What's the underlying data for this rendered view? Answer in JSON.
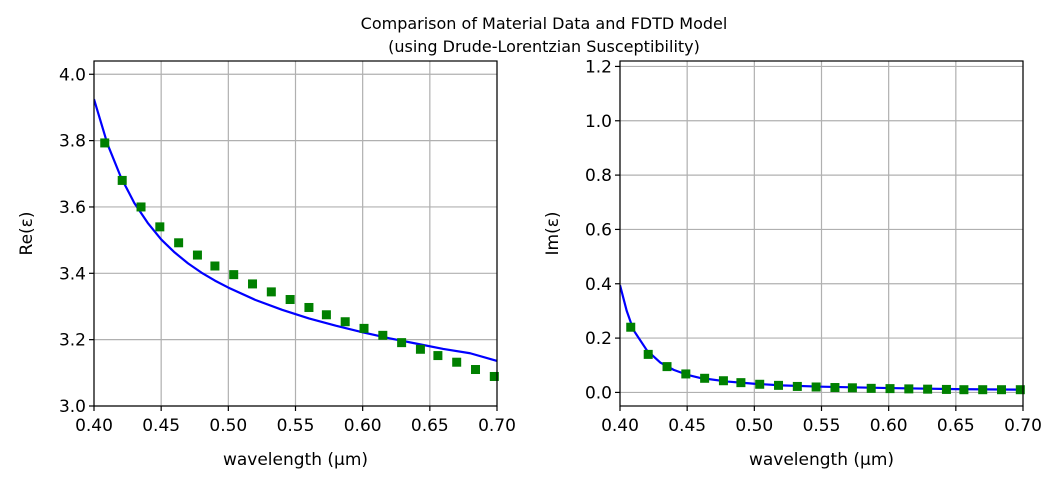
{
  "figure": {
    "title_line1": "Comparison of Material Data and FDTD Model",
    "title_line2": "(using Drude-Lorentzian Susceptibility)"
  },
  "colors": {
    "model_line": "#0000ff",
    "data_marker": "#008000",
    "grid": "#b0b0b0"
  },
  "chart_data": [
    {
      "type": "scatter+line",
      "title": "",
      "xlabel": "wavelength (μm)",
      "ylabel": "Re(ε)",
      "xlim": [
        0.4,
        0.7
      ],
      "ylim": [
        3.0,
        4.04
      ],
      "xticks": [
        0.4,
        0.45,
        0.5,
        0.55,
        0.6,
        0.65,
        0.7
      ],
      "xtick_labels": [
        "0.40",
        "0.45",
        "0.50",
        "0.55",
        "0.60",
        "0.65",
        "0.70"
      ],
      "yticks": [
        3.0,
        3.2,
        3.4,
        3.6,
        3.8,
        4.0
      ],
      "ytick_labels": [
        "3.0",
        "3.2",
        "3.4",
        "3.6",
        "3.8",
        "4.0"
      ],
      "grid": true,
      "series": [
        {
          "name": "Material Data",
          "style": "square-markers",
          "x": [
            0.408,
            0.421,
            0.435,
            0.449,
            0.463,
            0.477,
            0.49,
            0.504,
            0.518,
            0.532,
            0.546,
            0.56,
            0.573,
            0.587,
            0.601,
            0.615,
            0.629,
            0.643,
            0.656,
            0.67,
            0.684,
            0.698
          ],
          "values": [
            3.793,
            3.68,
            3.6,
            3.54,
            3.492,
            3.455,
            3.422,
            3.396,
            3.368,
            3.344,
            3.321,
            3.297,
            3.275,
            3.254,
            3.234,
            3.213,
            3.191,
            3.171,
            3.152,
            3.132,
            3.11,
            3.089
          ]
        },
        {
          "name": "FDTD Model",
          "style": "line",
          "x": [
            0.4,
            0.41,
            0.42,
            0.43,
            0.44,
            0.45,
            0.46,
            0.47,
            0.48,
            0.49,
            0.5,
            0.52,
            0.54,
            0.56,
            0.58,
            0.6,
            0.62,
            0.64,
            0.66,
            0.68,
            0.7
          ],
          "values": [
            3.925,
            3.79,
            3.69,
            3.612,
            3.552,
            3.502,
            3.463,
            3.43,
            3.402,
            3.378,
            3.357,
            3.32,
            3.29,
            3.264,
            3.242,
            3.222,
            3.204,
            3.188,
            3.172,
            3.159,
            3.136
          ]
        }
      ]
    },
    {
      "type": "scatter+line",
      "title": "",
      "xlabel": "wavelength (μm)",
      "ylabel": "Im(ε)",
      "xlim": [
        0.4,
        0.7
      ],
      "ylim": [
        -0.05,
        1.22
      ],
      "xticks": [
        0.4,
        0.45,
        0.5,
        0.55,
        0.6,
        0.65,
        0.7
      ],
      "xtick_labels": [
        "0.40",
        "0.45",
        "0.50",
        "0.55",
        "0.60",
        "0.65",
        "0.70"
      ],
      "yticks": [
        0.0,
        0.2,
        0.4,
        0.6,
        0.8,
        1.0,
        1.2
      ],
      "ytick_labels": [
        "0.0",
        "0.2",
        "0.4",
        "0.6",
        "0.8",
        "1.0",
        "1.2"
      ],
      "grid": true,
      "series": [
        {
          "name": "Material Data",
          "style": "square-markers",
          "x": [
            0.408,
            0.421,
            0.435,
            0.449,
            0.463,
            0.477,
            0.49,
            0.504,
            0.518,
            0.532,
            0.546,
            0.56,
            0.573,
            0.587,
            0.601,
            0.615,
            0.629,
            0.643,
            0.656,
            0.67,
            0.684,
            0.698
          ],
          "values": [
            0.24,
            0.14,
            0.095,
            0.068,
            0.052,
            0.043,
            0.036,
            0.03,
            0.026,
            0.022,
            0.02,
            0.018,
            0.017,
            0.015,
            0.014,
            0.013,
            0.012,
            0.011,
            0.01,
            0.01,
            0.01,
            0.01
          ]
        },
        {
          "name": "FDTD Model",
          "style": "line",
          "x": [
            0.4,
            0.405,
            0.41,
            0.42,
            0.43,
            0.44,
            0.45,
            0.46,
            0.48,
            0.5,
            0.52,
            0.55,
            0.6,
            0.65,
            0.7
          ],
          "values": [
            0.395,
            0.3,
            0.23,
            0.155,
            0.11,
            0.083,
            0.065,
            0.053,
            0.04,
            0.032,
            0.026,
            0.021,
            0.016,
            0.012,
            0.01
          ]
        }
      ]
    }
  ]
}
